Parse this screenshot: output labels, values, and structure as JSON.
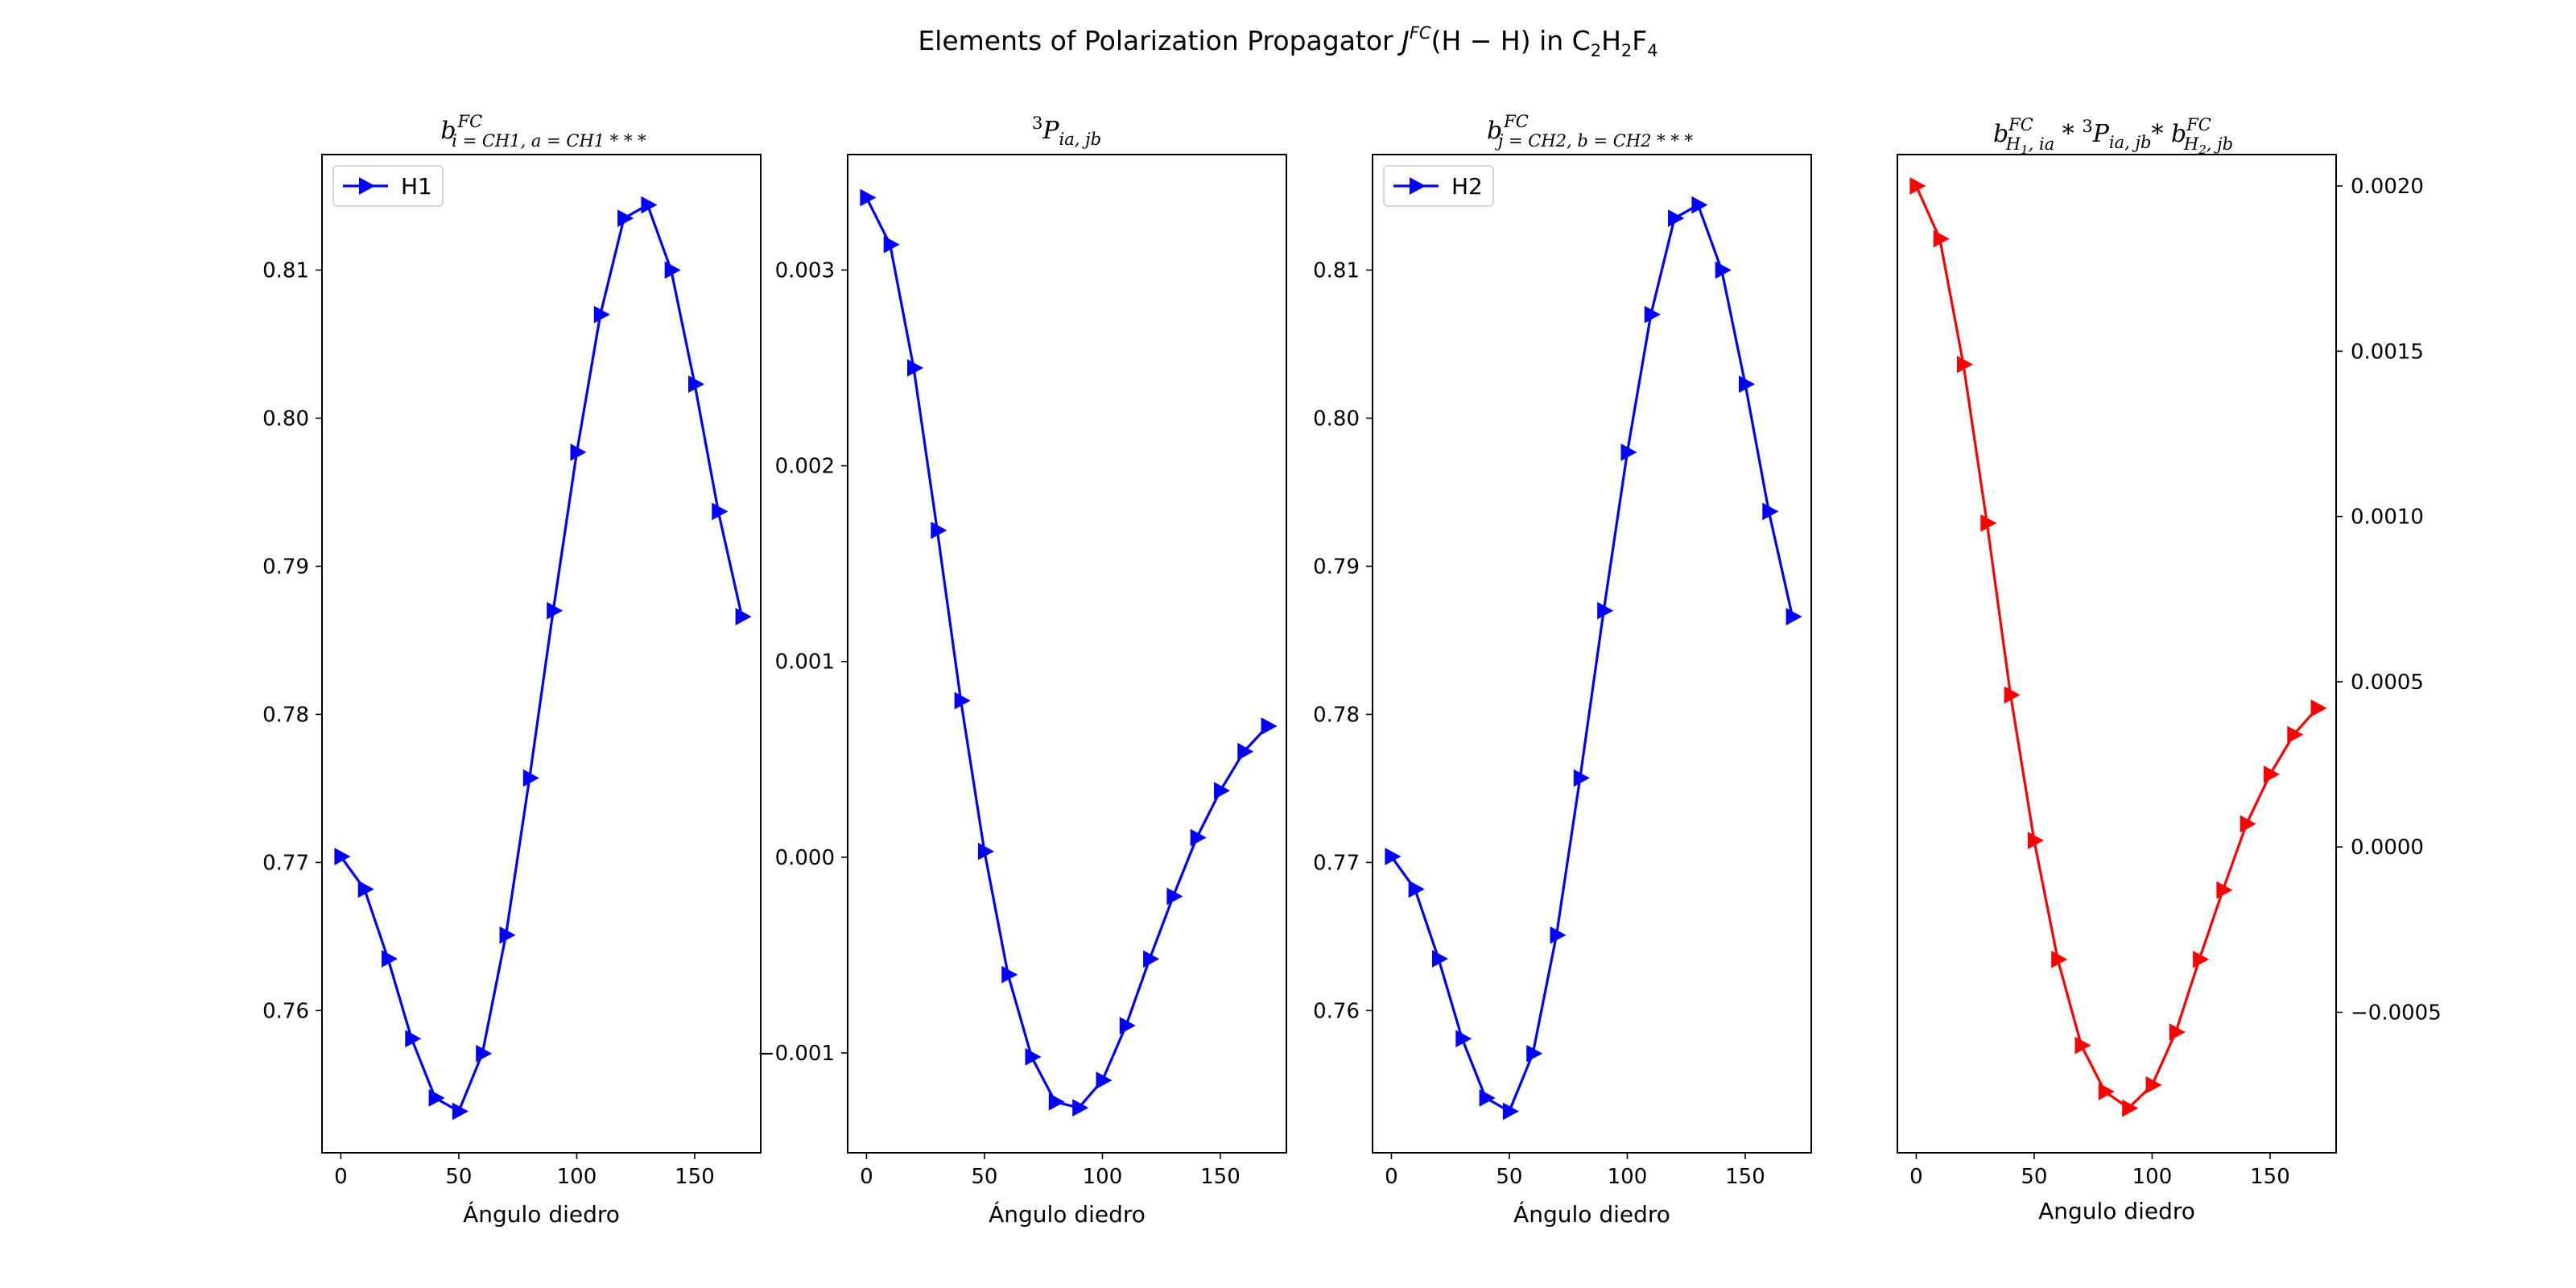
{
  "figure": {
    "suptitle_prefix": "Elements of Polarization Propagator ",
    "suptitle_J": "J",
    "suptitle_FC": "FC",
    "suptitle_arg": "(H − H)",
    "suptitle_in": " in C",
    "suptitle_formula_parts": [
      "2",
      "H",
      "2",
      "F",
      "4"
    ]
  },
  "chart_data": [
    {
      "type": "line",
      "title": "b_{i=CH1,a=CH1***}^{FC}",
      "title_parts": {
        "base": "b",
        "sup": "FC",
        "sub": "i = CH1, a = CH1 * * *"
      },
      "xlabel": "Ángulo diedro",
      "ylabel": "",
      "xlim": [
        -8,
        178
      ],
      "ylim": [
        0.7504,
        0.8178
      ],
      "xticks": [
        0,
        50,
        100,
        150
      ],
      "yticks": [
        0.76,
        0.77,
        0.78,
        0.79,
        0.8,
        0.81
      ],
      "ytick_labels": [
        "0.76",
        "0.77",
        "0.78",
        "0.79",
        "0.80",
        "0.81"
      ],
      "yaxis_side": "left",
      "legend": {
        "show": true,
        "position": "upper-left"
      },
      "series": [
        {
          "name": "H1",
          "color": "#0000ff",
          "marker": "triangle-right",
          "x": [
            0,
            10,
            20,
            30,
            40,
            50,
            60,
            70,
            80,
            90,
            100,
            110,
            120,
            130,
            140,
            150,
            160,
            170
          ],
          "y": [
            0.7704,
            0.7682,
            0.7635,
            0.7581,
            0.7541,
            0.7532,
            0.7571,
            0.7651,
            0.7757,
            0.787,
            0.7977,
            0.807,
            0.8135,
            0.8144,
            0.81,
            0.8023,
            0.7937,
            0.7866
          ]
        }
      ]
    },
    {
      "type": "line",
      "title": "^3P_{ia,jb}",
      "title_parts": {
        "pre_sup": "3",
        "base": "P",
        "sub": "ia, jb"
      },
      "xlabel": "Ángulo diedro",
      "ylabel": "",
      "xlim": [
        -8,
        178
      ],
      "ylim": [
        -0.00151,
        0.00359
      ],
      "xticks": [
        0,
        50,
        100,
        150
      ],
      "yticks": [
        -0.001,
        0.0,
        0.001,
        0.002,
        0.003
      ],
      "ytick_labels": [
        "−0.001",
        "0.000",
        "0.001",
        "0.002",
        "0.003"
      ],
      "yaxis_side": "left",
      "legend": {
        "show": false
      },
      "series": [
        {
          "name": "",
          "color": "#0000ff",
          "marker": "triangle-right",
          "x": [
            0,
            10,
            20,
            30,
            40,
            50,
            60,
            70,
            80,
            90,
            100,
            110,
            120,
            130,
            140,
            150,
            160,
            170
          ],
          "y": [
            0.00337,
            0.00313,
            0.0025,
            0.00167,
            0.0008,
            3e-05,
            -0.0006,
            -0.00102,
            -0.00125,
            -0.00128,
            -0.00114,
            -0.00086,
            -0.00052,
            -0.0002,
            0.0001,
            0.00034,
            0.00054,
            0.00067
          ]
        }
      ]
    },
    {
      "type": "line",
      "title": "b_{j=CH2,b=CH2***}^{FC}",
      "title_parts": {
        "base": "b",
        "sup": "FC",
        "sub": "j = CH2, b = CH2 * * *"
      },
      "xlabel": "Ángulo diedro",
      "ylabel": "",
      "xlim": [
        -8,
        178
      ],
      "ylim": [
        0.7504,
        0.8178
      ],
      "xticks": [
        0,
        50,
        100,
        150
      ],
      "yticks": [
        0.76,
        0.77,
        0.78,
        0.79,
        0.8,
        0.81
      ],
      "ytick_labels": [
        "0.76",
        "0.77",
        "0.78",
        "0.79",
        "0.80",
        "0.81"
      ],
      "yaxis_side": "left",
      "legend": {
        "show": true,
        "position": "upper-left"
      },
      "series": [
        {
          "name": "H2",
          "color": "#0000ff",
          "marker": "triangle-right",
          "x": [
            0,
            10,
            20,
            30,
            40,
            50,
            60,
            70,
            80,
            90,
            100,
            110,
            120,
            130,
            140,
            150,
            160,
            170
          ],
          "y": [
            0.7704,
            0.7682,
            0.7635,
            0.7581,
            0.7541,
            0.7532,
            0.7571,
            0.7651,
            0.7757,
            0.787,
            0.7977,
            0.807,
            0.8135,
            0.8144,
            0.81,
            0.8023,
            0.7937,
            0.7866
          ]
        }
      ]
    },
    {
      "type": "line",
      "title": "b_{H1,ia}^{FC} * ^3P_{ia,jb} * b_{H2,jb}^{FC}",
      "title_parts": {
        "text": "b^FC_{H1,ia} * ³P_{ia,jb} * b^FC_{H2,jb}"
      },
      "xlabel": "Angulo diedro",
      "ylabel": "",
      "xlim": [
        -8,
        178
      ],
      "ylim": [
        -0.000925,
        0.002095
      ],
      "xticks": [
        0,
        50,
        100,
        150
      ],
      "yticks": [
        -0.0005,
        0.0,
        0.0005,
        0.001,
        0.0015,
        0.002
      ],
      "ytick_labels": [
        "−0.0005",
        "0.0000",
        "0.0005",
        "0.0010",
        "0.0015",
        "0.0020"
      ],
      "yaxis_side": "right",
      "legend": {
        "show": false
      },
      "series": [
        {
          "name": "",
          "color": "#ff0000",
          "marker": "triangle-right",
          "x": [
            0,
            10,
            20,
            30,
            40,
            50,
            60,
            70,
            80,
            90,
            100,
            110,
            120,
            130,
            140,
            150,
            160,
            170
          ],
          "y": [
            0.002,
            0.00184,
            0.00146,
            0.00098,
            0.00046,
            2e-05,
            -0.00034,
            -0.0006,
            -0.00074,
            -0.00079,
            -0.00072,
            -0.00056,
            -0.00034,
            -0.00013,
            7e-05,
            0.00022,
            0.00034,
            0.00042
          ]
        }
      ]
    }
  ]
}
